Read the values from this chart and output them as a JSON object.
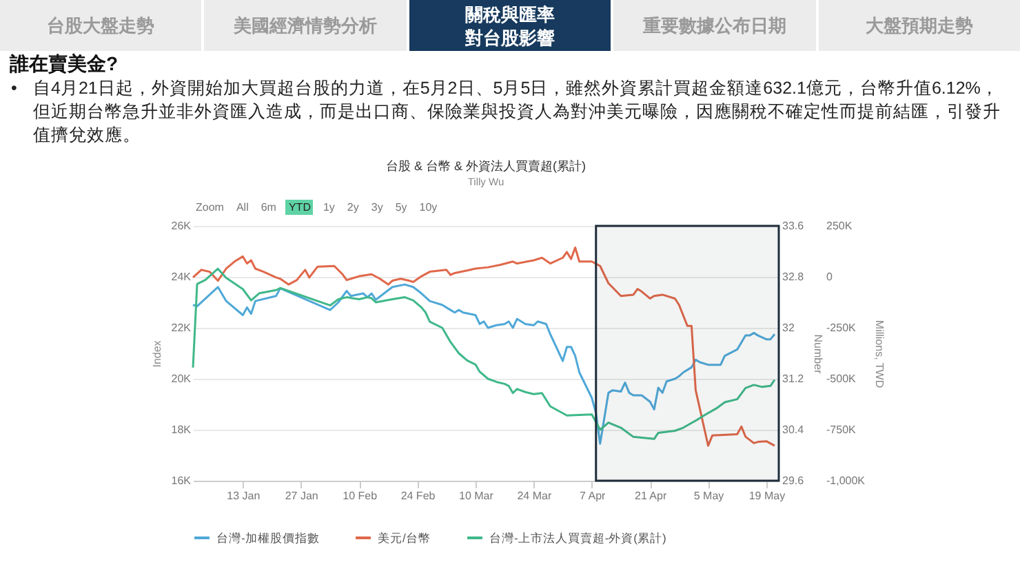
{
  "chart_data": {
    "type": "line",
    "title": "台股 & 台幣 & 外資法人買賣超(累計)",
    "subtitle": "Tilly Wu",
    "ylabel": "Index",
    "y2label": "Number",
    "y3label": "Millions, TWD",
    "annotations": [
      "台股大盤走勢",
      "美國經濟情勢分析",
      "關稅與匯率對台股影響",
      "重要數據公布日期",
      "大盤預期走勢",
      "誰在賣美金?",
      "•",
      "自4月21日起，外資開始加大買超台股的力道，在5月2日、5月5日，雖然外資累計買超金額達632.1億元，台幣升值6.12%，但近期台幣急升並非外資匯入造成，而是出口商、保險業與投資人為對沖美元曝險，因應關稅不確定性而提前結匯，引發升值擠兌效應。",
      "Zoom",
      "All",
      "6m",
      "YTD",
      "1y",
      "2y",
      "3y",
      "5y",
      "10y"
    ],
    "xlim": [
      "--01-01",
      "--05-22"
    ],
    "xticks": [
      {
        "value": "--01-13",
        "label": "13 Jan"
      },
      {
        "value": "--01-27",
        "label": "27 Jan"
      },
      {
        "value": "--02-10",
        "label": "10 Feb"
      },
      {
        "value": "--02-24",
        "label": "24 Feb"
      },
      {
        "value": "--03-10",
        "label": "10 Mar"
      },
      {
        "value": "--03-24",
        "label": "24 Mar"
      },
      {
        "value": "--04-07",
        "label": "7 Apr"
      },
      {
        "value": "--04-21",
        "label": "21 Apr"
      },
      {
        "value": "--05-05",
        "label": "5 May"
      },
      {
        "value": "--05-19",
        "label": "19 May"
      }
    ],
    "ylim": [
      16000,
      26000
    ],
    "yticks": [
      {
        "value": 16000,
        "label": "16K"
      },
      {
        "value": 18000,
        "label": "18K"
      },
      {
        "value": 20000,
        "label": "20K"
      },
      {
        "value": 22000,
        "label": "22K"
      },
      {
        "value": 24000,
        "label": "24K"
      },
      {
        "value": 26000,
        "label": "26K"
      }
    ],
    "y2lim": [
      29.6,
      33.6
    ],
    "y2ticks": [
      29.6,
      30.4,
      31.2,
      32,
      32.8,
      33.6
    ],
    "y3lim": [
      -1000000,
      250000
    ],
    "y3ticks": [
      {
        "value": -1000000,
        "label": "-1,000K"
      },
      {
        "value": -750000,
        "label": "-750K"
      },
      {
        "value": -500000,
        "label": "-500K"
      },
      {
        "value": -250000,
        "label": "-250K"
      },
      0,
      {
        "value": 250000,
        "label": "250K"
      }
    ],
    "grid": "y",
    "legend": "bottom",
    "bands": [
      {
        "axis": "x",
        "from": "--04-08",
        "to": "--05-22",
        "color": "#1f2d3a"
      }
    ],
    "series": [
      {
        "name": "台灣-加權股價指數",
        "color": "#4fa8d8",
        "axis": "y",
        "x": [
          "--01-01",
          "--01-02",
          "--01-07",
          "--01-09",
          "--01-13",
          "--01-14",
          "--01-15",
          "--01-16",
          "--01-21",
          "--01-22",
          "--02-03",
          "--02-05",
          "--02-07",
          "--02-08",
          "--02-11",
          "--02-12",
          "--02-13",
          "--02-14",
          "--02-18",
          "--02-21",
          "--02-23",
          "--02-25",
          "--02-26",
          "--02-27",
          "--03-02",
          "--03-04",
          "--03-05",
          "--03-06",
          "--03-07",
          "--03-10",
          "--03-11",
          "--03-12",
          "--03-13",
          "--03-15",
          "--03-17",
          "--03-18",
          "--03-19",
          "--03-20",
          "--03-22",
          "--03-24",
          "--03-25",
          "--03-27",
          "--03-28",
          "--03-31",
          "--04-01",
          "--04-02",
          "--04-03",
          "--04-04",
          "--04-07",
          "--04-08",
          "--04-09",
          "--04-10",
          "--04-11",
          "--04-12",
          "--04-14",
          "--04-15",
          "--04-16",
          "--04-17",
          "--04-19",
          "--04-21",
          "--04-22",
          "--04-23",
          "--04-24",
          "--04-25",
          "--04-27",
          "--04-28",
          "--04-29",
          "--05-01",
          "--05-02",
          "--05-03",
          "--05-05",
          "--05-08",
          "--05-09",
          "--05-12",
          "--05-14",
          "--05-15",
          "--05-16",
          "--05-17",
          "--05-19",
          "--05-20",
          "--05-21"
        ],
        "values": [
          22900,
          22850,
          23600,
          23050,
          22500,
          22800,
          22550,
          23050,
          23250,
          23550,
          22700,
          23000,
          23450,
          23250,
          23350,
          23200,
          23350,
          23100,
          23600,
          23700,
          23600,
          23350,
          23200,
          23050,
          22900,
          22700,
          22600,
          22700,
          22600,
          22500,
          22150,
          22250,
          22000,
          22100,
          22150,
          22250,
          22000,
          22350,
          22150,
          22100,
          22250,
          22150,
          21750,
          20700,
          21250,
          21250,
          20900,
          20250,
          19250,
          18650,
          17450,
          18450,
          19450,
          19550,
          19500,
          19850,
          19450,
          19350,
          19350,
          19100,
          18800,
          19650,
          19450,
          19900,
          20000,
          20100,
          20250,
          20450,
          20750,
          20650,
          20550,
          20550,
          20900,
          21150,
          21700,
          21700,
          21800,
          21700,
          21550,
          21550,
          21750
        ]
      },
      {
        "name": "美元/台幣",
        "color": "#e0684a",
        "axis": "y2",
        "x": [
          "--01-01",
          "--01-03",
          "--01-05",
          "--01-07",
          "--01-09",
          "--01-11",
          "--01-13",
          "--01-14",
          "--01-15",
          "--01-16",
          "--01-18",
          "--01-21",
          "--01-22",
          "--01-24",
          "--01-26",
          "--01-28",
          "--01-29",
          "--01-31",
          "--02-04",
          "--02-06",
          "--02-07",
          "--02-10",
          "--02-13",
          "--02-15",
          "--02-17",
          "--02-18",
          "--02-20",
          "--02-22",
          "--02-23",
          "--02-25",
          "--02-27",
          "--03-03",
          "--03-04",
          "--03-05",
          "--03-08",
          "--03-10",
          "--03-13",
          "--03-16",
          "--03-19",
          "--03-20",
          "--03-24",
          "--03-26",
          "--03-28",
          "--03-31",
          "--04-01",
          "--04-02",
          "--04-03",
          "--04-04",
          "--04-07",
          "--04-09",
          "--04-11",
          "--04-14",
          "--04-17",
          "--04-18",
          "--04-19",
          "--04-21",
          "--04-22",
          "--04-24",
          "--04-27",
          "--04-28",
          "--04-30",
          "--05-01",
          "--05-02",
          "--05-05",
          "--05-06",
          "--05-12",
          "--05-13",
          "--05-14",
          "--05-16",
          "--05-17",
          "--05-19",
          "--05-21"
        ],
        "values": [
          32.79,
          32.91,
          32.88,
          32.74,
          32.93,
          33.04,
          33.12,
          33.01,
          33.06,
          32.93,
          32.88,
          32.79,
          32.77,
          32.68,
          32.75,
          32.91,
          32.79,
          32.96,
          32.97,
          32.84,
          32.75,
          32.81,
          32.84,
          32.77,
          32.68,
          32.74,
          32.77,
          32.74,
          32.72,
          32.81,
          32.88,
          32.91,
          32.83,
          32.86,
          32.9,
          32.93,
          32.95,
          32.99,
          33.04,
          33.01,
          33.06,
          33.1,
          33.01,
          33.1,
          33.19,
          33.08,
          33.26,
          33.04,
          33.04,
          32.97,
          32.7,
          32.5,
          32.52,
          32.61,
          32.57,
          32.46,
          32.5,
          32.52,
          32.46,
          32.36,
          32.03,
          32.03,
          31.02,
          30.15,
          30.31,
          30.33,
          30.45,
          30.29,
          30.19,
          30.21,
          30.22,
          30.15
        ]
      },
      {
        "name": "台灣-上市法人買賣超-外資(累計)",
        "color": "#3fb88a",
        "axis": "y3",
        "x": [
          "--01-01",
          "--01-02",
          "--01-04",
          "--01-07",
          "--01-09",
          "--01-13",
          "--01-15",
          "--01-17",
          "--01-21",
          "--01-22",
          "--02-03",
          "--02-05",
          "--02-07",
          "--02-10",
          "--02-12",
          "--02-13",
          "--02-14",
          "--02-18",
          "--02-21",
          "--02-23",
          "--02-25",
          "--02-26",
          "--02-27",
          "--03-02",
          "--03-04",
          "--03-06",
          "--03-08",
          "--03-10",
          "--03-11",
          "--03-13",
          "--03-15",
          "--03-17",
          "--03-18",
          "--03-19",
          "--03-20",
          "--03-22",
          "--03-24",
          "--03-26",
          "--03-28",
          "--04-01",
          "--04-07",
          "--04-09",
          "--04-11",
          "--04-14",
          "--04-17",
          "--04-22",
          "--04-23",
          "--04-25",
          "--04-27",
          "--04-29",
          "--05-02",
          "--05-04",
          "--05-07",
          "--05-09",
          "--05-12",
          "--05-14",
          "--05-16",
          "--05-18",
          "--05-20",
          "--05-21"
        ],
        "values": [
          -445000,
          -35000,
          -15000,
          40000,
          -5000,
          -60000,
          -115000,
          -80000,
          -65000,
          -55000,
          -140000,
          -110000,
          -100000,
          -110000,
          -100000,
          -105000,
          -125000,
          -110000,
          -100000,
          -115000,
          -150000,
          -175000,
          -220000,
          -250000,
          -320000,
          -375000,
          -410000,
          -430000,
          -465000,
          -500000,
          -515000,
          -525000,
          -535000,
          -570000,
          -550000,
          -565000,
          -575000,
          -570000,
          -635000,
          -680000,
          -675000,
          -750000,
          -715000,
          -740000,
          -785000,
          -795000,
          -765000,
          -760000,
          -755000,
          -740000,
          -705000,
          -680000,
          -645000,
          -615000,
          -600000,
          -545000,
          -530000,
          -540000,
          -535000,
          -505000
        ]
      }
    ]
  }
}
